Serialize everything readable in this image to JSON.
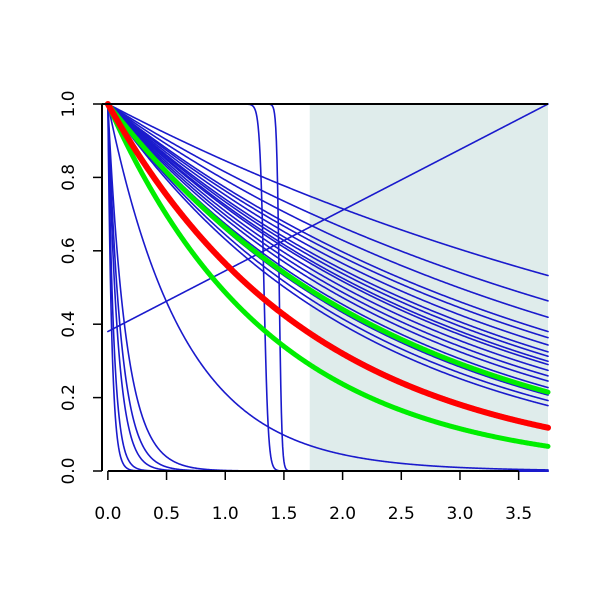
{
  "chart_data": {
    "type": "line",
    "title": "",
    "xlabel": "",
    "ylabel": "",
    "xlim": [
      -0.05,
      3.75
    ],
    "ylim": [
      0.0,
      1.0
    ],
    "grid": false,
    "legend": "none",
    "shaded_region": {
      "x_from": 1.72,
      "x_to": 3.75,
      "color": "#dfeceb"
    },
    "xticks": [
      "0.0",
      "0.5",
      "1.0",
      "1.5",
      "2.0",
      "2.5",
      "3.0",
      "3.5"
    ],
    "yticks": [
      "0.0",
      "0.2",
      "0.4",
      "0.6",
      "0.8",
      "1.0"
    ],
    "colors": {
      "blue": "#1a1acc",
      "red": "#ff0000",
      "green": "#00ee00"
    },
    "series": [
      {
        "color": "blue",
        "width": 1.6,
        "kind": "exp",
        "rate": 0.168
      },
      {
        "color": "blue",
        "width": 1.6,
        "kind": "exp",
        "rate": 0.205
      },
      {
        "color": "blue",
        "width": 1.6,
        "kind": "exp",
        "rate": 0.232
      },
      {
        "color": "blue",
        "width": 1.6,
        "kind": "exp",
        "rate": 0.258
      },
      {
        "color": "blue",
        "width": 1.6,
        "kind": "exp",
        "rate": 0.27
      },
      {
        "color": "blue",
        "width": 1.6,
        "kind": "exp",
        "rate": 0.285
      },
      {
        "color": "blue",
        "width": 1.6,
        "kind": "exp",
        "rate": 0.3
      },
      {
        "color": "blue",
        "width": 1.6,
        "kind": "exp",
        "rate": 0.31
      },
      {
        "color": "blue",
        "width": 1.6,
        "kind": "exp",
        "rate": 0.322
      },
      {
        "color": "blue",
        "width": 1.6,
        "kind": "exp",
        "rate": 0.33
      },
      {
        "color": "blue",
        "width": 1.6,
        "kind": "exp",
        "rate": 0.345
      },
      {
        "color": "blue",
        "width": 1.6,
        "kind": "exp",
        "rate": 0.36
      },
      {
        "color": "blue",
        "width": 1.6,
        "kind": "exp",
        "rate": 0.375
      },
      {
        "color": "blue",
        "width": 1.6,
        "kind": "exp",
        "rate": 0.395
      },
      {
        "color": "blue",
        "width": 1.6,
        "kind": "exp",
        "rate": 0.42
      },
      {
        "color": "blue",
        "width": 1.6,
        "kind": "exp",
        "rate": 0.44
      },
      {
        "color": "blue",
        "width": 1.6,
        "kind": "exp",
        "rate": 0.46
      },
      {
        "color": "blue",
        "width": 1.6,
        "kind": "exp",
        "rate": 0.56
      },
      {
        "color": "blue",
        "width": 1.6,
        "kind": "exp",
        "rate": 1.55
      },
      {
        "color": "blue",
        "width": 1.6,
        "kind": "exp",
        "rate": 6.5
      },
      {
        "color": "blue",
        "width": 1.6,
        "kind": "exp",
        "rate": 9.0
      },
      {
        "color": "blue",
        "width": 1.6,
        "kind": "exp",
        "rate": 12.0
      },
      {
        "color": "blue",
        "width": 1.6,
        "kind": "exp",
        "rate": 20.0
      },
      {
        "color": "blue",
        "width": 1.6,
        "kind": "exp",
        "rate": 30.0
      },
      {
        "color": "blue",
        "width": 1.6,
        "kind": "step",
        "center": 1.33,
        "steep": 55
      },
      {
        "color": "blue",
        "width": 1.6,
        "kind": "step",
        "center": 1.46,
        "steep": 90
      },
      {
        "color": "blue",
        "width": 1.6,
        "kind": "linear",
        "y0": 0.38,
        "y1": 1.0
      },
      {
        "color": "green",
        "width": 5,
        "kind": "exp",
        "rate": 0.41
      },
      {
        "color": "green",
        "width": 5,
        "kind": "exp",
        "rate": 0.72
      },
      {
        "color": "red",
        "width": 6,
        "kind": "exp",
        "rate": 0.57
      }
    ]
  }
}
